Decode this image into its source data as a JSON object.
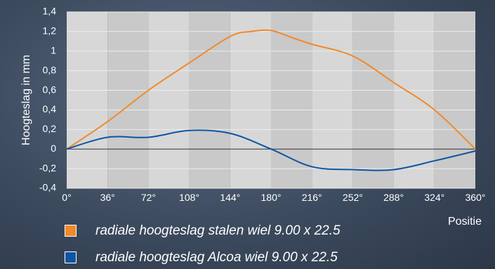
{
  "chart_data": {
    "type": "line",
    "xlabel": "Positie",
    "ylabel": "Hoogteslag in mm",
    "x_categories": [
      "0°",
      "36°",
      "72°",
      "108°",
      "144°",
      "180°",
      "216°",
      "252°",
      "288°",
      "324°",
      "360°"
    ],
    "xlim": [
      0,
      360
    ],
    "ylim": [
      -0.4,
      1.4
    ],
    "y_ticks": [
      -0.4,
      -0.2,
      0,
      0.2,
      0.4,
      0.6,
      0.8,
      1,
      1.2,
      1.4
    ],
    "y_tick_labels": [
      "-0,4",
      "-0,2",
      "0",
      "0,2",
      "0,4",
      "0,6",
      "0,8",
      "1",
      "1,2",
      "1,4"
    ],
    "grid": true,
    "legend_position": "bottom",
    "series": [
      {
        "name": "radiale hoogteslag stalen wiel 9.00 x 22.5",
        "color": "#f08a2a",
        "x": [
          0,
          36,
          72,
          108,
          144,
          162,
          180,
          198,
          216,
          252,
          288,
          324,
          360
        ],
        "y": [
          0,
          0.28,
          0.6,
          0.88,
          1.15,
          1.2,
          1.21,
          1.14,
          1.07,
          0.95,
          0.68,
          0.4,
          0
        ]
      },
      {
        "name": "radiale hoogteslag Alcoa wiel 9.00 x 22.5",
        "color": "#0d56a3",
        "x": [
          0,
          36,
          72,
          108,
          144,
          180,
          216,
          252,
          288,
          324,
          360
        ],
        "y": [
          0,
          0.12,
          0.12,
          0.19,
          0.16,
          0,
          -0.18,
          -0.21,
          -0.21,
          -0.12,
          -0.02
        ]
      }
    ]
  }
}
